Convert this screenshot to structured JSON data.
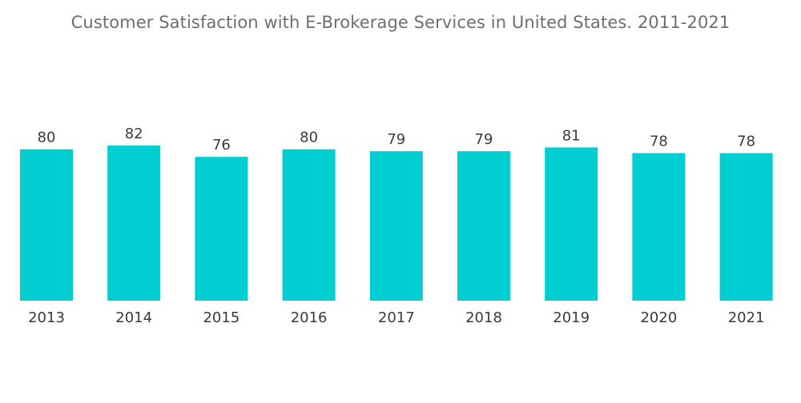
{
  "chart_data": {
    "type": "bar",
    "title": "Customer Satisfaction with E-Brokerage Services in United States. 2011-2021",
    "xlabel": "",
    "ylabel": "",
    "categories": [
      "2013",
      "2014",
      "2015",
      "2016",
      "2017",
      "2018",
      "2019",
      "2020",
      "2021"
    ],
    "values": [
      80,
      82,
      76,
      80,
      79,
      79,
      81,
      78,
      78
    ],
    "ylim": [
      0,
      82
    ],
    "grid": false,
    "legend": "none",
    "bar_color": "#00ced1"
  }
}
